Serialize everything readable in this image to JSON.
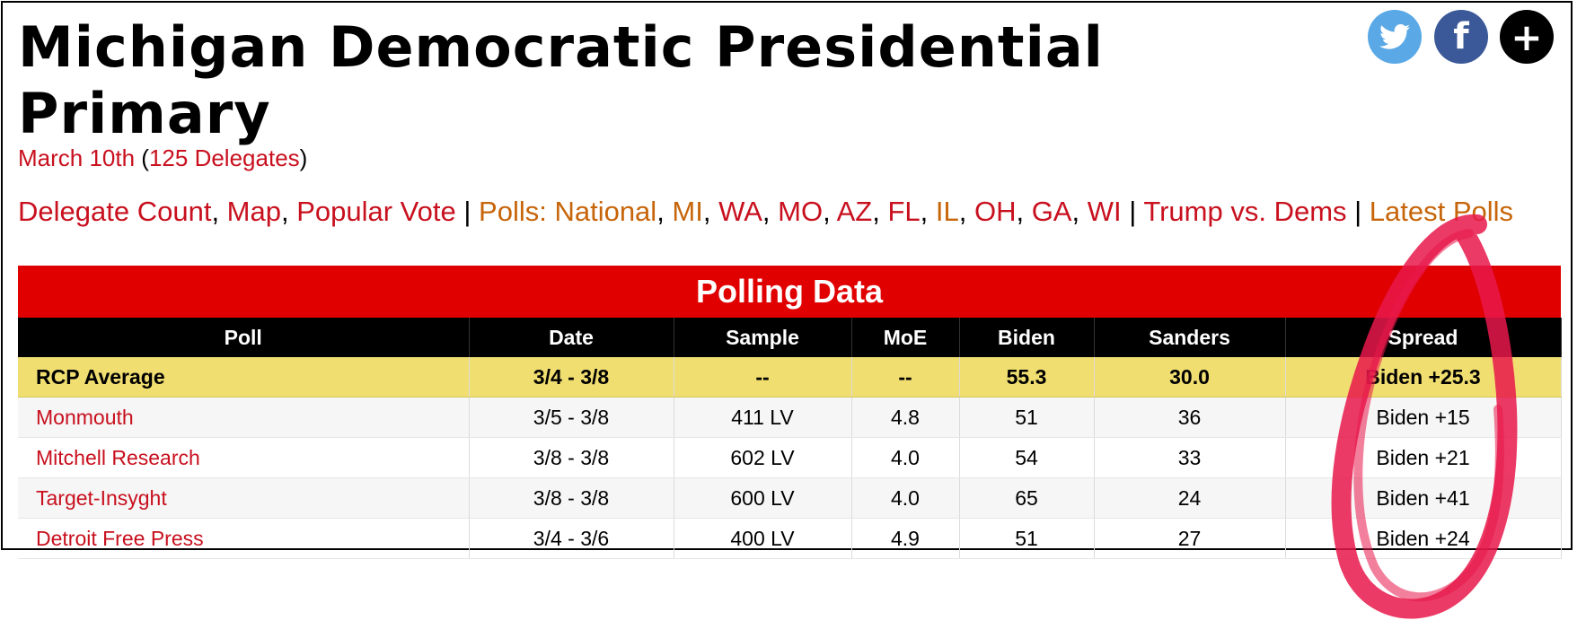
{
  "title": "Michigan Democratic Presidential Primary",
  "subline": {
    "date": "March 10th",
    "open_paren": " (",
    "delegates": "125 Delegates",
    "close_paren": ")"
  },
  "nav": {
    "delegate_count": "Delegate Count",
    "map": "Map",
    "popular_vote": "Popular Vote",
    "polls_national": "Polls: National",
    "mi": "MI",
    "wa": "WA",
    "mo": "MO",
    "az": "AZ",
    "fl": "FL",
    "il": "IL",
    "oh": "OH",
    "ga": "GA",
    "wi": "WI",
    "trump_vs_dems": "Trump vs. Dems",
    "latest_polls": "Latest Polls",
    "comma": ", ",
    "bar": " | "
  },
  "social": {
    "twitter": "twitter-icon",
    "facebook": "f",
    "plus": "+"
  },
  "table": {
    "header": "Polling Data",
    "columns": [
      "Poll",
      "Date",
      "Sample",
      "MoE",
      "Biden",
      "Sanders",
      "Spread"
    ],
    "rows": [
      [
        "RCP Average",
        "3/4 - 3/8",
        "--",
        "--",
        "55.3",
        "30.0",
        "Biden +25.3"
      ],
      [
        "Monmouth",
        "3/5 - 3/8",
        "411 LV",
        "4.8",
        "51",
        "36",
        "Biden +15"
      ],
      [
        "Mitchell Research",
        "3/8 - 3/8",
        "602 LV",
        "4.0",
        "54",
        "33",
        "Biden +21"
      ],
      [
        "Target-Insyght",
        "3/8 - 3/8",
        "600 LV",
        "4.0",
        "65",
        "24",
        "Biden +41"
      ],
      [
        "Detroit Free Press",
        "3/4 - 3/6",
        "400 LV",
        "4.9",
        "51",
        "27",
        "Biden +24"
      ]
    ]
  },
  "colors": {
    "accent_red": "#e00000",
    "link_red": "#c8101e",
    "link_orange": "#c7650a",
    "avg_row": "#f0de70",
    "marker": "#e8174a"
  }
}
